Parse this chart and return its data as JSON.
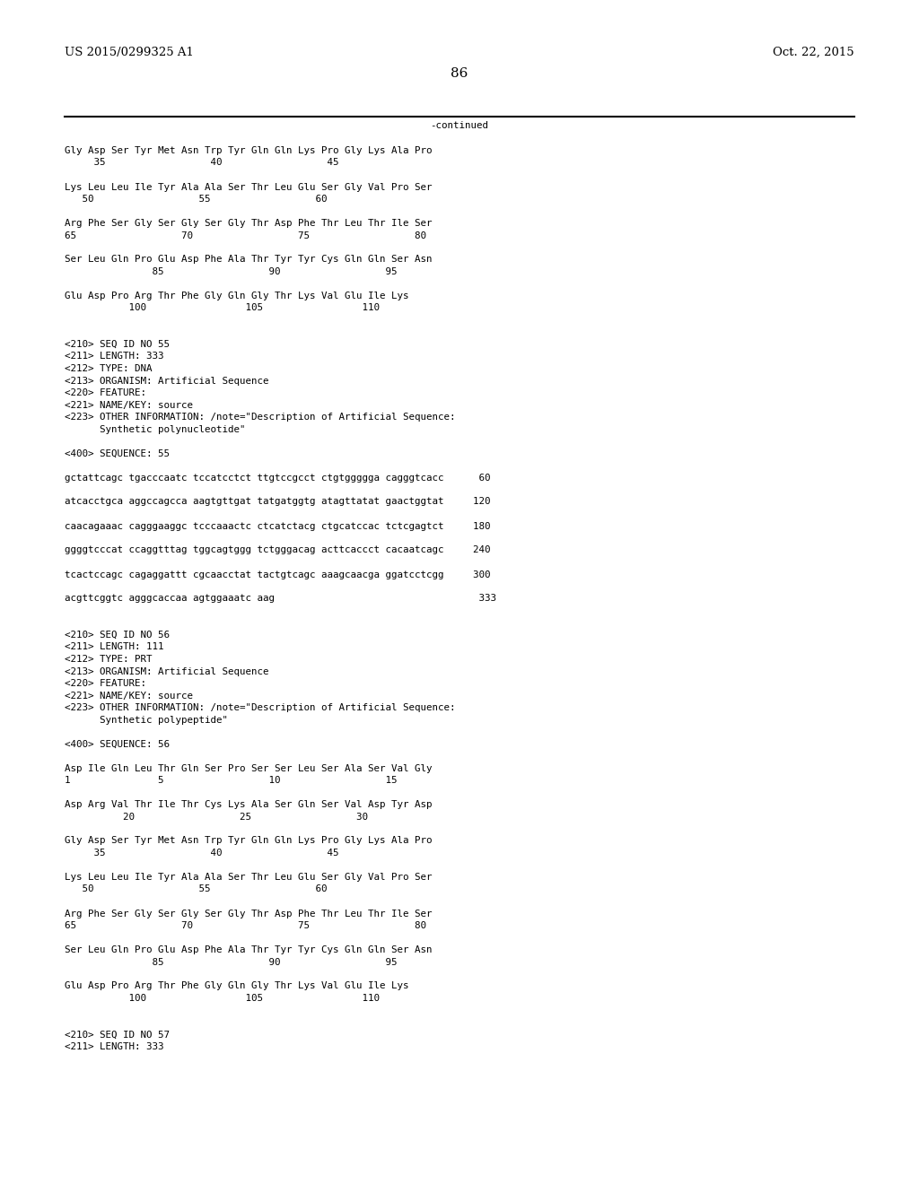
{
  "header_left": "US 2015/0299325 A1",
  "header_right": "Oct. 22, 2015",
  "page_number": "86",
  "continued_label": "-continued",
  "background_color": "#ffffff",
  "text_color": "#000000",
  "font_size_header": 9.5,
  "font_size_body": 7.8,
  "font_size_page": 11,
  "lines": [
    "Gly Asp Ser Tyr Met Asn Trp Tyr Gln Gln Lys Pro Gly Lys Ala Pro",
    "     35                  40                  45",
    "",
    "Lys Leu Leu Ile Tyr Ala Ala Ser Thr Leu Glu Ser Gly Val Pro Ser",
    "   50                  55                  60",
    "",
    "Arg Phe Ser Gly Ser Gly Ser Gly Thr Asp Phe Thr Leu Thr Ile Ser",
    "65                  70                  75                  80",
    "",
    "Ser Leu Gln Pro Glu Asp Phe Ala Thr Tyr Tyr Cys Gln Gln Ser Asn",
    "               85                  90                  95",
    "",
    "Glu Asp Pro Arg Thr Phe Gly Gln Gly Thr Lys Val Glu Ile Lys",
    "           100                 105                 110",
    "",
    "",
    "<210> SEQ ID NO 55",
    "<211> LENGTH: 333",
    "<212> TYPE: DNA",
    "<213> ORGANISM: Artificial Sequence",
    "<220> FEATURE:",
    "<221> NAME/KEY: source",
    "<223> OTHER INFORMATION: /note=\"Description of Artificial Sequence:",
    "      Synthetic polynucleotide\"",
    "",
    "<400> SEQUENCE: 55",
    "",
    "gctattcagc tgacccaatc tccatcctct ttgtccgcct ctgtggggga cagggtcacc      60",
    "",
    "atcacctgca aggccagcca aagtgttgat tatgatggtg atagttatat gaactggtat     120",
    "",
    "caacagaaac cagggaaggc tcccaaactc ctcatctacg ctgcatccac tctcgagtct     180",
    "",
    "ggggtcccat ccaggtttag tggcagtggg tctgggacag acttcaccct cacaatcagc     240",
    "",
    "tcactccagc cagaggattt cgcaacctat tactgtcagc aaagcaacga ggatcctcgg     300",
    "",
    "acgttcggtc agggcaccaa agtggaaatc aag                                   333",
    "",
    "",
    "<210> SEQ ID NO 56",
    "<211> LENGTH: 111",
    "<212> TYPE: PRT",
    "<213> ORGANISM: Artificial Sequence",
    "<220> FEATURE:",
    "<221> NAME/KEY: source",
    "<223> OTHER INFORMATION: /note=\"Description of Artificial Sequence:",
    "      Synthetic polypeptide\"",
    "",
    "<400> SEQUENCE: 56",
    "",
    "Asp Ile Gln Leu Thr Gln Ser Pro Ser Ser Leu Ser Ala Ser Val Gly",
    "1               5                  10                  15",
    "",
    "Asp Arg Val Thr Ile Thr Cys Lys Ala Ser Gln Ser Val Asp Tyr Asp",
    "          20                  25                  30",
    "",
    "Gly Asp Ser Tyr Met Asn Trp Tyr Gln Gln Lys Pro Gly Lys Ala Pro",
    "     35                  40                  45",
    "",
    "Lys Leu Leu Ile Tyr Ala Ala Ser Thr Leu Glu Ser Gly Val Pro Ser",
    "   50                  55                  60",
    "",
    "Arg Phe Ser Gly Ser Gly Ser Gly Thr Asp Phe Thr Leu Thr Ile Ser",
    "65                  70                  75                  80",
    "",
    "Ser Leu Gln Pro Glu Asp Phe Ala Thr Tyr Tyr Cys Gln Gln Ser Asn",
    "               85                  90                  95",
    "",
    "Glu Asp Pro Arg Thr Phe Gly Gln Gly Thr Lys Val Glu Ile Lys",
    "           100                 105                 110",
    "",
    "",
    "<210> SEQ ID NO 57",
    "<211> LENGTH: 333"
  ]
}
